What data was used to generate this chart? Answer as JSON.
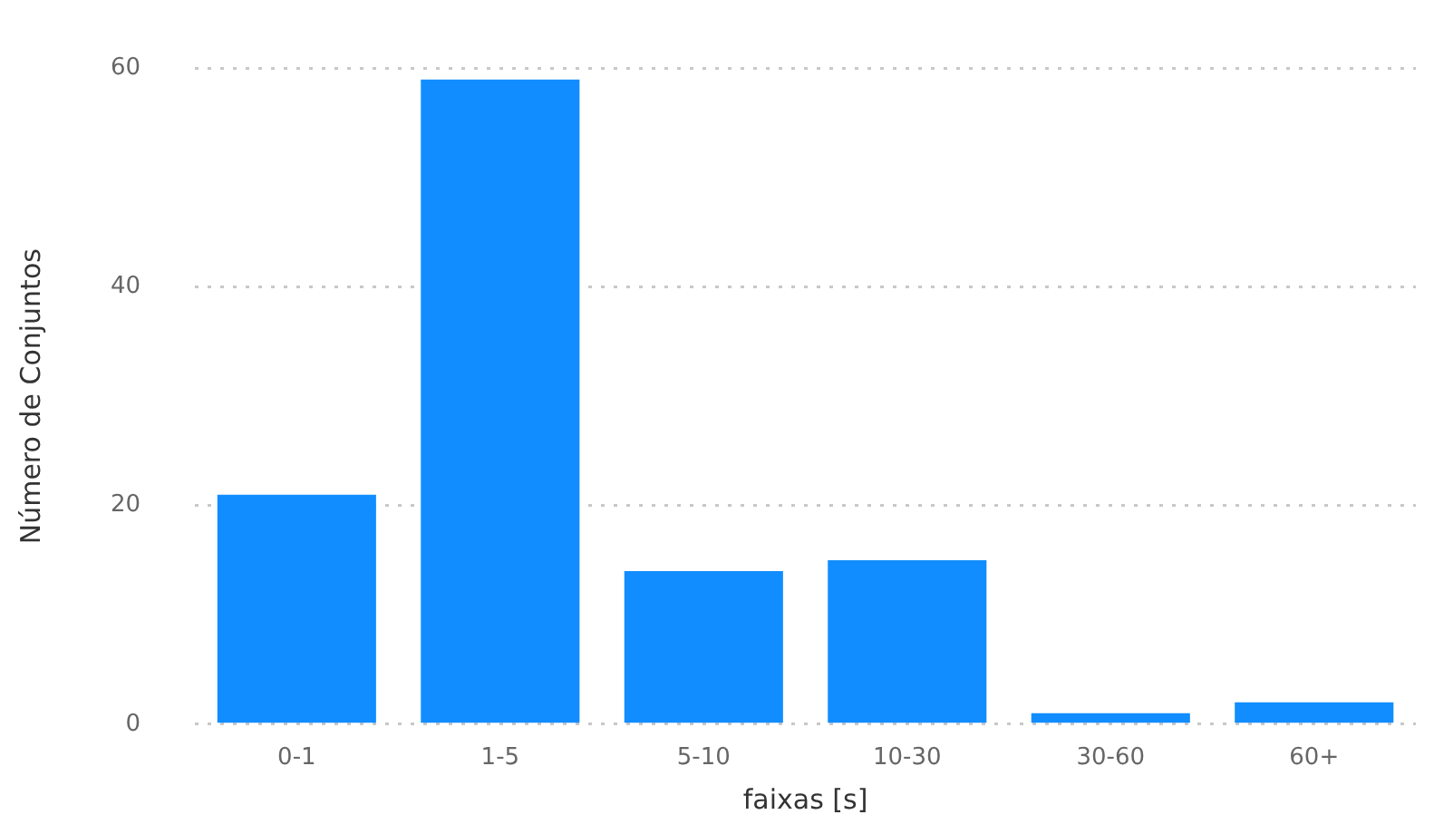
{
  "chart_data": {
    "type": "bar",
    "xlabel": "faixas [s]",
    "ylabel": "Número de Conjuntos",
    "categories": [
      "0-1",
      "1-5",
      "5-10",
      "10-30",
      "30-60",
      "60+"
    ],
    "values": [
      21,
      59,
      14,
      15,
      1,
      2
    ],
    "color": "#118dff",
    "ylim": [
      0,
      60
    ],
    "yticks": [
      0,
      20,
      40,
      60
    ],
    "grid": "y"
  }
}
